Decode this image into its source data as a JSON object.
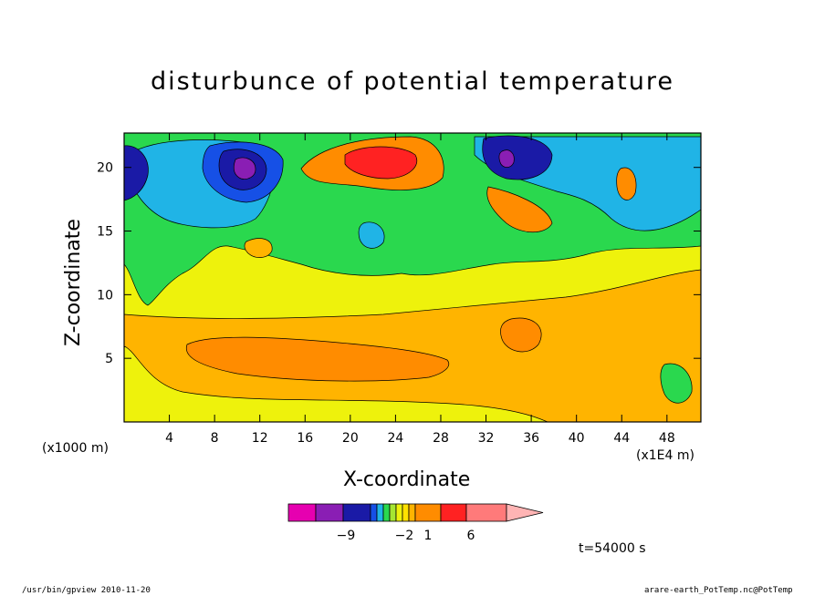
{
  "chart_data": {
    "type": "heatmap",
    "title": "disturbunce of potential temperature",
    "xlabel": "X-coordinate",
    "ylabel": "Z-coordinate",
    "x_units_left": "(x1000 m)",
    "x_units_right": "(x1E4 m)",
    "xlim": [
      0,
      51
    ],
    "ylim": [
      0,
      22.7
    ],
    "xticks": [
      4,
      8,
      12,
      16,
      20,
      24,
      28,
      32,
      36,
      40,
      44,
      48
    ],
    "yticks": [
      5,
      10,
      15,
      20
    ],
    "time_label": "t=54000 s",
    "colorbar": {
      "tick_labels": [
        {
          "value": -9,
          "text": "−9"
        },
        {
          "value": -2,
          "text": "−2"
        },
        {
          "value": 1,
          "text": "1"
        },
        {
          "value": 6,
          "text": "6"
        }
      ],
      "colors": [
        "#e600b0",
        "#8a1eb4",
        "#1a1aa6",
        "#1650e6",
        "#20b4e6",
        "#2ad84e",
        "#a6e632",
        "#eef20c",
        "#ffe100",
        "#ffb400",
        "#ff8c00",
        "#ff2222",
        "#ff7a7a",
        "#ffb4b4"
      ]
    }
  },
  "footer": {
    "left": "/usr/bin/gpview  2010-11-20",
    "right": "arare-earth_PotTemp.nc@PotTemp"
  }
}
